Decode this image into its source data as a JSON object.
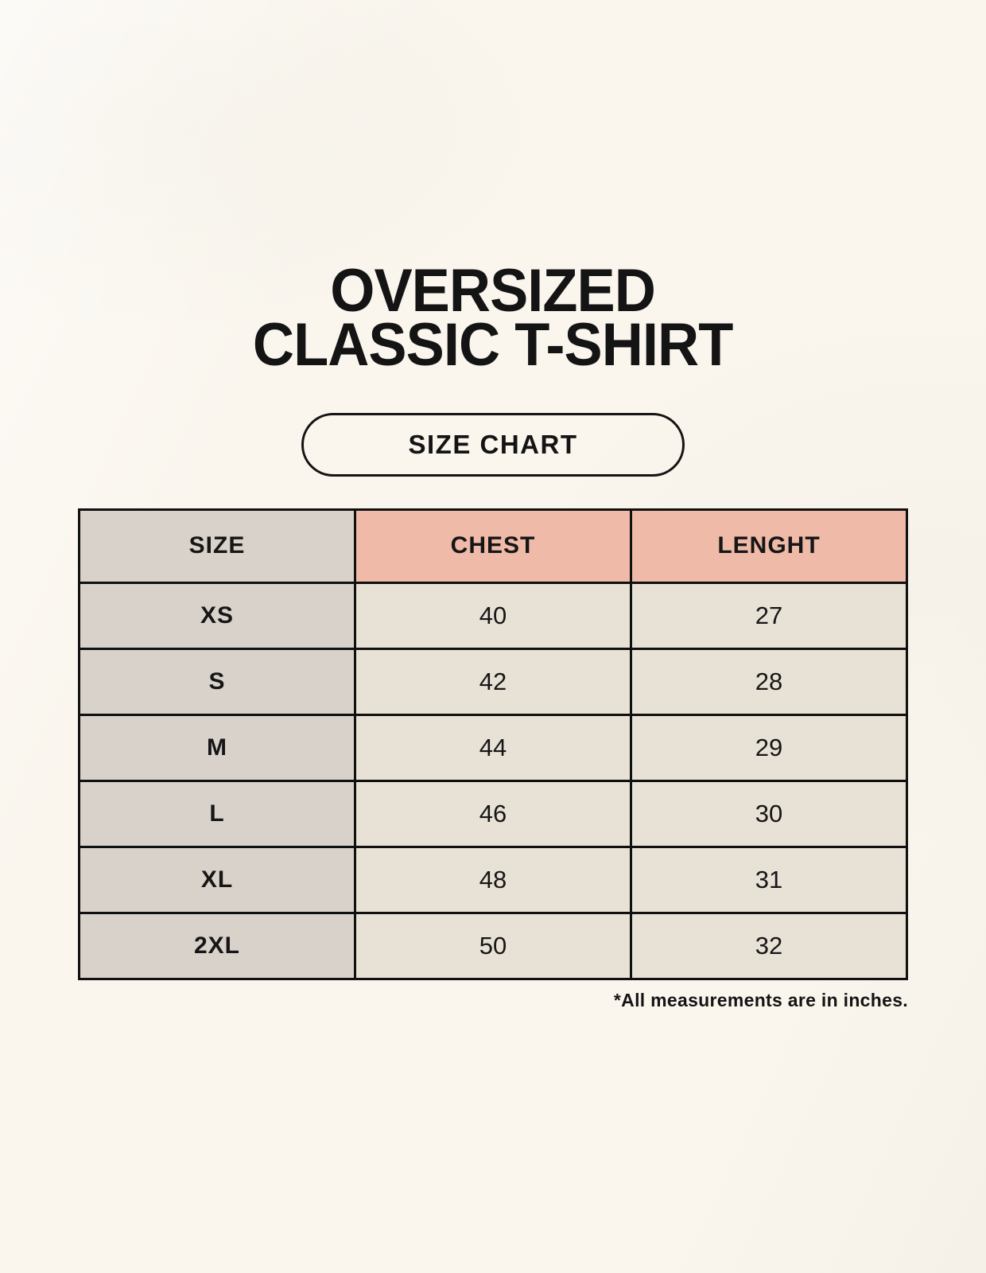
{
  "title": {
    "line1": "OVERSIZED",
    "line2": "CLASSIC T-SHIRT"
  },
  "size_chart_button": {
    "label": "SIZE CHART"
  },
  "table": {
    "columns": [
      "SIZE",
      "CHEST",
      "LENGHT"
    ],
    "rows": [
      {
        "size": "XS",
        "chest": "40",
        "length": "27"
      },
      {
        "size": "S",
        "chest": "42",
        "length": "28"
      },
      {
        "size": "M",
        "chest": "44",
        "length": "29"
      },
      {
        "size": "L",
        "chest": "46",
        "length": "30"
      },
      {
        "size": "XL",
        "chest": "48",
        "length": "31"
      },
      {
        "size": "2XL",
        "chest": "50",
        "length": "32"
      }
    ]
  },
  "footnote": "*All measurements are in inches.",
  "colors": {
    "background": "#faf6ee",
    "header_accent": "#efbaa8",
    "size_column_gray": "#d8d2cb",
    "value_cell_beige": "#e8e1d6",
    "border": "#101010",
    "text": "#141414"
  }
}
